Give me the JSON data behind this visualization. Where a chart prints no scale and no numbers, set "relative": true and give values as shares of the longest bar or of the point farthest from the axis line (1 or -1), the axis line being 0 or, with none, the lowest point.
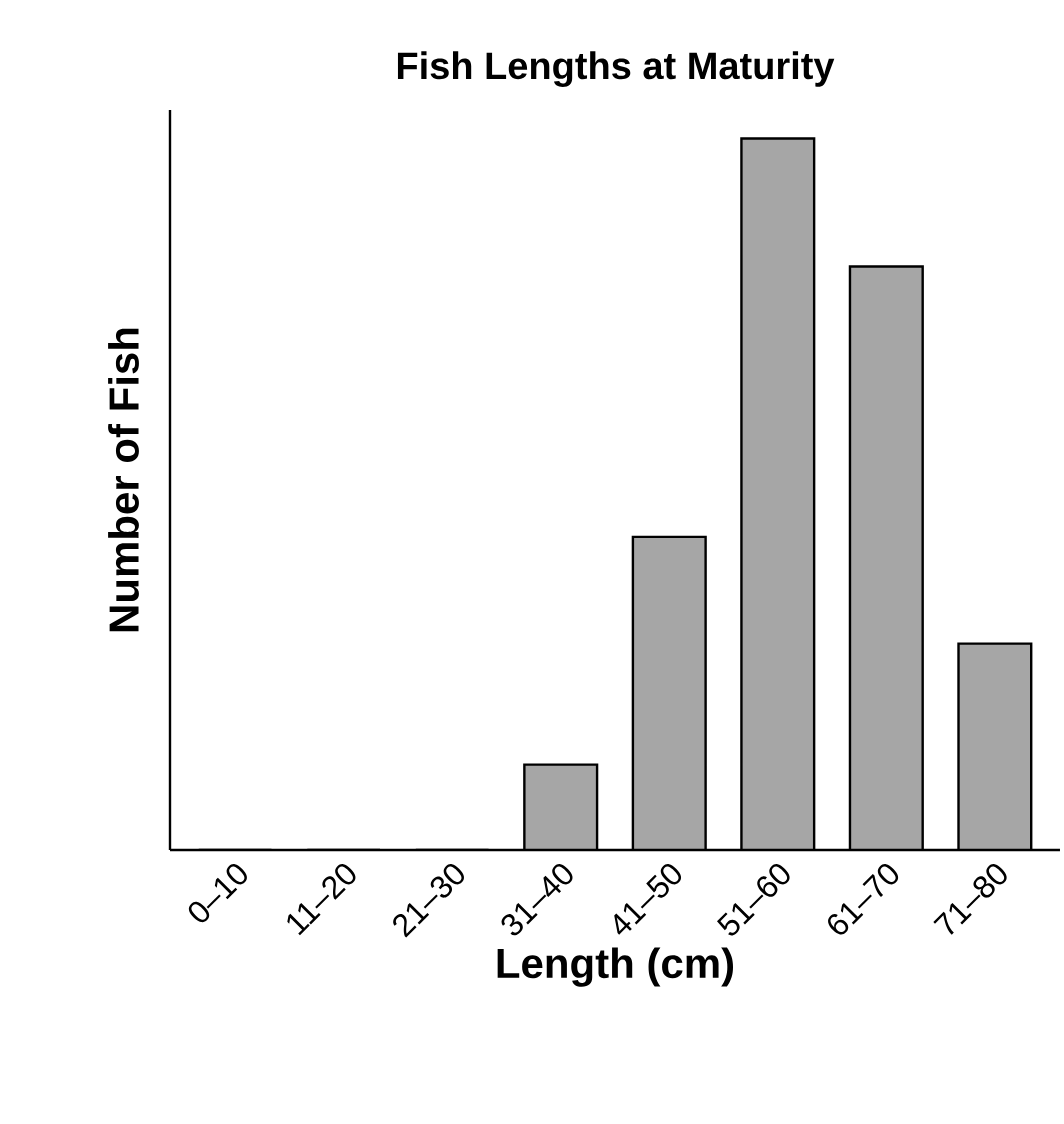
{
  "chart_data": {
    "type": "bar",
    "title": "Fish Lengths at Maturity",
    "xlabel": "Length (cm)",
    "ylabel": "Number of Fish",
    "categories": [
      "0–10",
      "11–20",
      "21–30",
      "31–40",
      "41–50",
      "51–60",
      "61–70",
      "71–80"
    ],
    "values": [
      0,
      0,
      0,
      0.12,
      0.44,
      1,
      0.82,
      0.29
    ],
    "color": "#a6a6a6",
    "relative": true
  }
}
